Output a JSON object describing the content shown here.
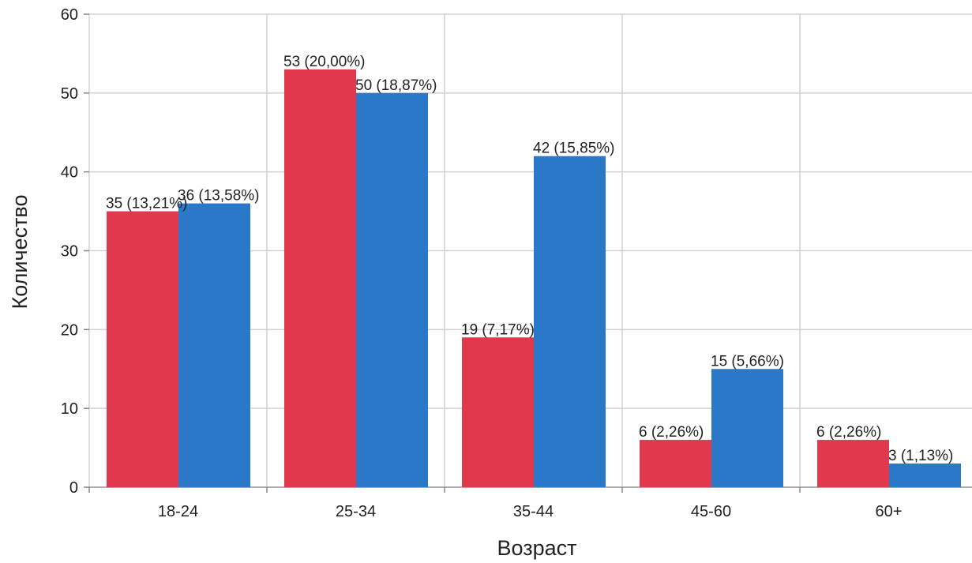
{
  "chart_data": {
    "type": "bar",
    "title": "",
    "xlabel": "Возраст",
    "ylabel": "Количество",
    "ylim": [
      0,
      60
    ],
    "yticks": [
      0,
      10,
      20,
      30,
      40,
      50,
      60
    ],
    "grid": true,
    "categories": [
      "18-24",
      "25-34",
      "35-44",
      "45-60",
      "60+"
    ],
    "series": [
      {
        "color": "#e0384c",
        "values": [
          35,
          53,
          19,
          6,
          6
        ],
        "labels": [
          "35 (13,21%)",
          "53 (20,00%)",
          "19 (7,17%)",
          "6 (2,26%)",
          "6 (2,26%)"
        ]
      },
      {
        "color": "#2b78c9",
        "values": [
          36,
          50,
          42,
          15,
          3
        ],
        "labels": [
          "36 (13,58%)",
          "50 (18,87%)",
          "42 (15,85%)",
          "15 (5,66%)",
          "3 (1,13%)"
        ]
      }
    ]
  }
}
